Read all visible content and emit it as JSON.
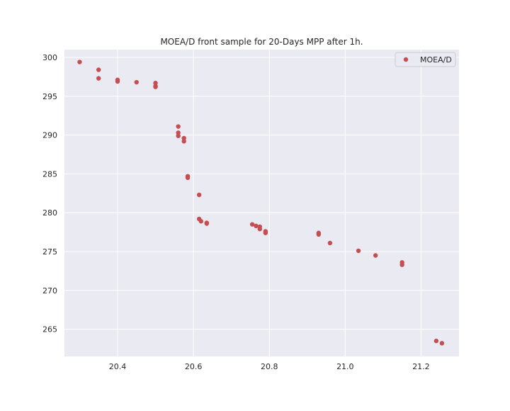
{
  "chart_data": {
    "type": "scatter",
    "title": "MOEA/D front sample for 20-Days MPP after 1h.",
    "xlabel": "",
    "ylabel": "",
    "xlim": [
      20.26,
      21.3
    ],
    "ylim": [
      261.5,
      301.0
    ],
    "xticks": [
      20.4,
      20.6,
      20.8,
      21.0,
      21.2
    ],
    "xtick_labels": [
      "20.4",
      "20.6",
      "20.8",
      "21.0",
      "21.2"
    ],
    "yticks": [
      265,
      270,
      275,
      280,
      285,
      290,
      295,
      300
    ],
    "ytick_labels": [
      "265",
      "270",
      "275",
      "280",
      "285",
      "290",
      "295",
      "300"
    ],
    "grid": true,
    "legend_position": "top-right",
    "series": [
      {
        "name": "MOEA/D",
        "color": "#c44e52",
        "points": [
          [
            20.3,
            299.4
          ],
          [
            20.35,
            298.4
          ],
          [
            20.35,
            297.3
          ],
          [
            20.4,
            297.1
          ],
          [
            20.4,
            296.9
          ],
          [
            20.45,
            296.8
          ],
          [
            20.5,
            296.7
          ],
          [
            20.5,
            296.3
          ],
          [
            20.5,
            296.2
          ],
          [
            20.56,
            291.1
          ],
          [
            20.56,
            290.3
          ],
          [
            20.56,
            289.9
          ],
          [
            20.575,
            289.6
          ],
          [
            20.575,
            289.2
          ],
          [
            20.585,
            284.7
          ],
          [
            20.585,
            284.5
          ],
          [
            20.615,
            282.3
          ],
          [
            20.615,
            279.2
          ],
          [
            20.62,
            278.9
          ],
          [
            20.635,
            278.7
          ],
          [
            20.635,
            278.6
          ],
          [
            20.755,
            278.5
          ],
          [
            20.765,
            278.3
          ],
          [
            20.775,
            278.2
          ],
          [
            20.775,
            277.9
          ],
          [
            20.79,
            277.6
          ],
          [
            20.79,
            277.4
          ],
          [
            20.93,
            277.4
          ],
          [
            20.93,
            277.2
          ],
          [
            20.96,
            276.1
          ],
          [
            21.035,
            275.1
          ],
          [
            21.08,
            274.5
          ],
          [
            21.15,
            273.6
          ],
          [
            21.15,
            273.3
          ],
          [
            21.24,
            263.5
          ],
          [
            21.255,
            263.2
          ]
        ]
      }
    ]
  }
}
